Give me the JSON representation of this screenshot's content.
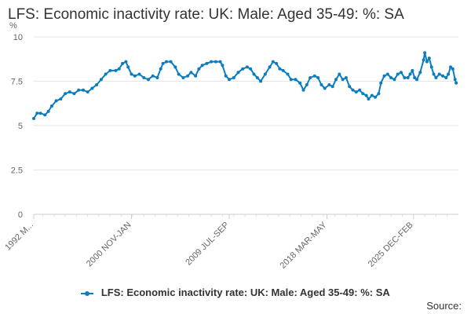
{
  "chart_data": {
    "type": "line",
    "title": "LFS: Economic inactivity rate: UK: Male: Aged 35-49: %: SA",
    "ylabel": "%",
    "xlabel": "",
    "ylim": [
      0,
      10
    ],
    "yticks": [
      "0",
      "2.5",
      "5",
      "7.5",
      "10"
    ],
    "xticks": [
      {
        "label": "1992 M...",
        "year": 1992.2
      },
      {
        "label": "2000 NOV-JAN",
        "year": 2000.9
      },
      {
        "label": "2009 JUL-SEP",
        "year": 2009.6
      },
      {
        "label": "2018 MAR-MAY",
        "year": 2018.3
      },
      {
        "label": "2025 DEC-FEB",
        "year": 2026.0
      }
    ],
    "color": "#0a7cc0",
    "grid": true,
    "legend_position": "bottom",
    "series": [
      {
        "name": "LFS: Economic inactivity rate: UK: Male: Aged 35-49: %: SA",
        "points": [
          [
            1992.2,
            5.4
          ],
          [
            1992.5,
            5.7
          ],
          [
            1992.8,
            5.7
          ],
          [
            1993.2,
            5.6
          ],
          [
            1993.5,
            5.8
          ],
          [
            1993.8,
            6.1
          ],
          [
            1994.2,
            6.4
          ],
          [
            1994.6,
            6.5
          ],
          [
            1995.0,
            6.8
          ],
          [
            1995.4,
            6.9
          ],
          [
            1995.8,
            6.8
          ],
          [
            1996.2,
            7.0
          ],
          [
            1996.6,
            7.0
          ],
          [
            1997.0,
            6.9
          ],
          [
            1997.4,
            7.1
          ],
          [
            1997.8,
            7.3
          ],
          [
            1998.2,
            7.6
          ],
          [
            1998.6,
            7.9
          ],
          [
            1999.0,
            8.1
          ],
          [
            1999.5,
            8.1
          ],
          [
            1999.8,
            8.2
          ],
          [
            2000.1,
            8.5
          ],
          [
            2000.4,
            8.6
          ],
          [
            2000.6,
            8.3
          ],
          [
            2000.9,
            7.9
          ],
          [
            2001.2,
            7.8
          ],
          [
            2001.6,
            7.9
          ],
          [
            2002.0,
            7.7
          ],
          [
            2002.4,
            7.6
          ],
          [
            2002.8,
            7.8
          ],
          [
            2003.2,
            7.7
          ],
          [
            2003.5,
            8.2
          ],
          [
            2003.7,
            8.5
          ],
          [
            2004.0,
            8.6
          ],
          [
            2004.4,
            8.6
          ],
          [
            2004.8,
            8.3
          ],
          [
            2005.1,
            7.9
          ],
          [
            2005.5,
            7.7
          ],
          [
            2005.9,
            7.8
          ],
          [
            2006.2,
            8.0
          ],
          [
            2006.6,
            7.8
          ],
          [
            2006.9,
            8.2
          ],
          [
            2007.2,
            8.4
          ],
          [
            2007.6,
            8.5
          ],
          [
            2008.0,
            8.6
          ],
          [
            2008.4,
            8.6
          ],
          [
            2008.8,
            8.6
          ],
          [
            2009.0,
            8.4
          ],
          [
            2009.3,
            7.8
          ],
          [
            2009.6,
            7.6
          ],
          [
            2010.0,
            7.7
          ],
          [
            2010.4,
            8.0
          ],
          [
            2010.8,
            8.2
          ],
          [
            2011.2,
            8.3
          ],
          [
            2011.5,
            8.2
          ],
          [
            2011.8,
            7.9
          ],
          [
            2012.1,
            7.7
          ],
          [
            2012.4,
            7.5
          ],
          [
            2012.8,
            7.9
          ],
          [
            2013.2,
            8.3
          ],
          [
            2013.5,
            8.6
          ],
          [
            2013.8,
            8.5
          ],
          [
            2014.1,
            8.2
          ],
          [
            2014.4,
            8.1
          ],
          [
            2014.8,
            7.9
          ],
          [
            2015.1,
            7.6
          ],
          [
            2015.5,
            7.6
          ],
          [
            2015.9,
            7.4
          ],
          [
            2016.2,
            7.0
          ],
          [
            2016.5,
            7.3
          ],
          [
            2016.8,
            7.7
          ],
          [
            2017.2,
            7.8
          ],
          [
            2017.5,
            7.7
          ],
          [
            2017.8,
            7.3
          ],
          [
            2018.1,
            7.1
          ],
          [
            2018.5,
            7.3
          ],
          [
            2018.8,
            7.2
          ],
          [
            2019.1,
            7.6
          ],
          [
            2019.4,
            7.9
          ],
          [
            2019.7,
            7.6
          ],
          [
            2020.0,
            7.7
          ],
          [
            2020.3,
            7.2
          ],
          [
            2020.6,
            7.0
          ],
          [
            2020.9,
            6.9
          ],
          [
            2021.2,
            7.0
          ],
          [
            2021.5,
            6.8
          ],
          [
            2021.8,
            6.7
          ],
          [
            2022.0,
            6.5
          ],
          [
            2022.3,
            6.7
          ],
          [
            2022.6,
            6.6
          ],
          [
            2022.9,
            6.8
          ],
          [
            2023.1,
            7.4
          ],
          [
            2023.4,
            7.8
          ],
          [
            2023.7,
            7.9
          ],
          [
            2024.0,
            7.7
          ],
          [
            2024.3,
            7.6
          ],
          [
            2024.6,
            7.9
          ],
          [
            2024.9,
            8.0
          ],
          [
            2025.2,
            7.7
          ],
          [
            2025.5,
            7.7
          ],
          [
            2025.7,
            7.9
          ],
          [
            2025.9,
            8.1
          ],
          [
            2026.1,
            7.7
          ],
          [
            2026.3,
            7.6
          ],
          [
            2026.6,
            8.0
          ],
          [
            2026.9,
            8.7
          ],
          [
            2027.0,
            9.1
          ],
          [
            2027.2,
            8.6
          ],
          [
            2027.4,
            8.8
          ],
          [
            2027.6,
            8.3
          ],
          [
            2027.8,
            7.9
          ],
          [
            2028.0,
            7.7
          ],
          [
            2028.3,
            7.9
          ],
          [
            2028.6,
            7.8
          ],
          [
            2028.9,
            7.7
          ],
          [
            2029.1,
            7.9
          ],
          [
            2029.3,
            8.3
          ],
          [
            2029.5,
            8.2
          ],
          [
            2029.7,
            7.6
          ],
          [
            2029.8,
            7.4
          ]
        ]
      }
    ]
  },
  "legend": {
    "label": "LFS: Economic inactivity rate: UK: Male: Aged 35-49: %: SA"
  },
  "source": {
    "label": "Source:"
  }
}
